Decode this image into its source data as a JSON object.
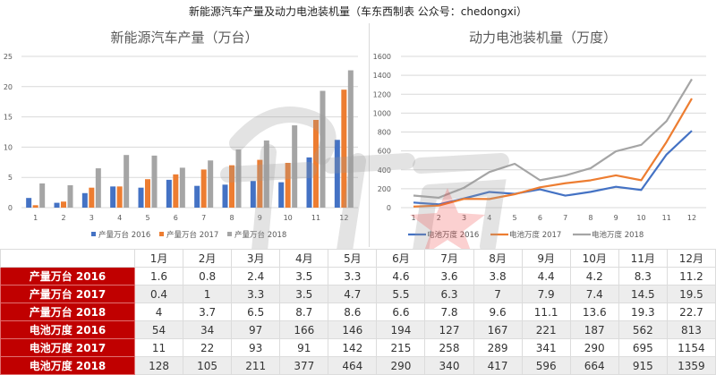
{
  "title": "新能源汽车产量及动力电池装机量（车东西制表 公众号：chedongxi）",
  "chart_data": [
    {
      "type": "bar",
      "title": "新能源汽车产量（万台）",
      "categories": [
        "1",
        "2",
        "3",
        "4",
        "5",
        "6",
        "7",
        "8",
        "9",
        "10",
        "11",
        "12"
      ],
      "ylim": [
        0,
        25
      ],
      "yticks": [
        0,
        5,
        10,
        15,
        20,
        25
      ],
      "grid": true,
      "legend_position": "bottom",
      "series": [
        {
          "name": "产量万台 2016",
          "color": "#4472c4",
          "values": [
            1.6,
            0.8,
            2.4,
            3.5,
            3.3,
            4.6,
            3.6,
            3.8,
            4.4,
            4.2,
            8.3,
            11.2
          ]
        },
        {
          "name": "产量万台 2017",
          "color": "#ed7d31",
          "values": [
            0.4,
            1,
            3.3,
            3.5,
            4.7,
            5.5,
            6.3,
            7,
            7.9,
            7.4,
            14.5,
            19.5
          ]
        },
        {
          "name": "产量万台 2018",
          "color": "#a5a5a5",
          "values": [
            4,
            3.7,
            6.5,
            8.7,
            8.6,
            6.6,
            7.8,
            9.6,
            11.1,
            13.6,
            19.3,
            22.7
          ]
        }
      ]
    },
    {
      "type": "line",
      "title": "动力电池装机量（万度）",
      "categories": [
        "1",
        "2",
        "3",
        "4",
        "5",
        "6",
        "7",
        "8",
        "9",
        "10",
        "11",
        "12"
      ],
      "ylim": [
        0,
        1600
      ],
      "yticks": [
        0,
        200,
        400,
        600,
        800,
        1000,
        1200,
        1400,
        1600
      ],
      "grid": true,
      "legend_position": "bottom",
      "series": [
        {
          "name": "电池万度 2016",
          "color": "#4472c4",
          "values": [
            54,
            34,
            97,
            166,
            146,
            194,
            127,
            167,
            221,
            187,
            562,
            813
          ]
        },
        {
          "name": "电池万度 2017",
          "color": "#ed7d31",
          "values": [
            11,
            22,
            93,
            91,
            142,
            215,
            258,
            289,
            341,
            290,
            695,
            1154
          ]
        },
        {
          "name": "电池万度 2018",
          "color": "#a5a5a5",
          "values": [
            128,
            105,
            211,
            377,
            464,
            290,
            340,
            417,
            596,
            664,
            915,
            1359
          ]
        }
      ]
    }
  ],
  "table": {
    "headers": [
      "",
      "1月",
      "2月",
      "3月",
      "4月",
      "5月",
      "6月",
      "7月",
      "8月",
      "9月",
      "10月",
      "11月",
      "12月"
    ],
    "rows": [
      {
        "label": "产量万台 2016",
        "values": [
          "1.6",
          "0.8",
          "2.4",
          "3.5",
          "3.3",
          "4.6",
          "3.6",
          "3.8",
          "4.4",
          "4.2",
          "8.3",
          "11.2"
        ]
      },
      {
        "label": "产量万台 2017",
        "values": [
          "0.4",
          "1",
          "3.3",
          "3.5",
          "4.7",
          "5.5",
          "6.3",
          "7",
          "7.9",
          "7.4",
          "14.5",
          "19.5"
        ]
      },
      {
        "label": "产量万台 2018",
        "values": [
          "4",
          "3.7",
          "6.5",
          "8.7",
          "8.6",
          "6.6",
          "7.8",
          "9.6",
          "11.1",
          "13.6",
          "19.3",
          "22.7"
        ]
      },
      {
        "label": "电池万度 2016",
        "values": [
          "54",
          "34",
          "97",
          "166",
          "146",
          "194",
          "127",
          "167",
          "221",
          "187",
          "562",
          "813"
        ]
      },
      {
        "label": "电池万度 2017",
        "values": [
          "11",
          "22",
          "93",
          "91",
          "142",
          "215",
          "258",
          "289",
          "341",
          "290",
          "695",
          "1154"
        ]
      },
      {
        "label": "电池万度 2018",
        "values": [
          "128",
          "105",
          "211",
          "377",
          "464",
          "290",
          "340",
          "417",
          "596",
          "664",
          "915",
          "1359"
        ]
      }
    ]
  },
  "colors": {
    "accent_red": "#c00000",
    "blue": "#4472c4",
    "orange": "#ed7d31",
    "gray": "#a5a5a5"
  }
}
